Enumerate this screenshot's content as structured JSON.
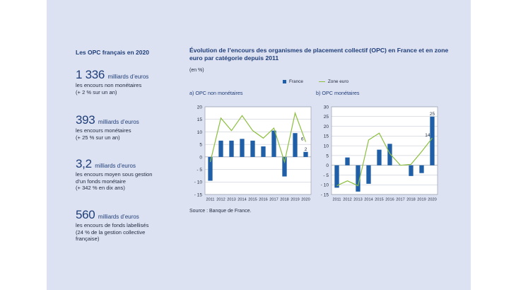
{
  "sidebar": {
    "heading": "Les OPC français en 2020",
    "stats": [
      {
        "value": "1 336",
        "unit": "milliards d’euros",
        "desc": "les encours non monétaires\n(+ 2 % sur un an)"
      },
      {
        "value": "393",
        "unit": "milliards d’euros",
        "desc": "les encours monétaires\n(+ 25 % sur un an)"
      },
      {
        "value": "3,2",
        "unit": "milliards d’euros",
        "desc": "les encours moyen sous gestion\nd’un fonds monétaire\n(+ 342 % en dix ans)"
      },
      {
        "value": "560",
        "unit": "milliards d’euros",
        "desc": "les encours de fonds labellisés\n(24 % de la gestion collective\nfrançaise)"
      }
    ]
  },
  "figure": {
    "title": "Évolution de l’encours des organismes de placement collectif (OPC) en France et en zone euro par catégorie depuis 2011",
    "unit": "(en %)",
    "legend_france": "France",
    "legend_zone": "Zone euro",
    "source": "Source : Banque de France.",
    "colors": {
      "bar": "#1f5fa8",
      "line": "#8cbf3f"
    }
  },
  "chart_data": [
    {
      "type": "bar",
      "subtitle": "a)  OPC non monétaires",
      "categories": [
        "2011",
        "2012",
        "2013",
        "2014",
        "2015",
        "2016",
        "2017",
        "2018",
        "2019",
        "2020"
      ],
      "ylim": [
        -15,
        20
      ],
      "yticks": [
        -15,
        -10,
        -5,
        0,
        5,
        10,
        15,
        20
      ],
      "series": [
        {
          "name": "France",
          "type": "bar",
          "values": [
            -9.5,
            6.5,
            6.5,
            7.2,
            6.5,
            4.2,
            10.5,
            -7.8,
            9.5,
            2
          ]
        },
        {
          "name": "Zone euro",
          "type": "line",
          "values": [
            -2,
            15.5,
            10.5,
            16.5,
            10.5,
            7.5,
            11.5,
            -2,
            17.5,
            6
          ]
        }
      ],
      "labels": [
        {
          "series": 0,
          "index": 9,
          "text": "2"
        },
        {
          "series": 1,
          "index": 9,
          "text": "6"
        }
      ]
    },
    {
      "type": "bar",
      "subtitle": "b)  OPC monétaires",
      "categories": [
        "2011",
        "2012",
        "2013",
        "2014",
        "2015",
        "2016",
        "2017",
        "2018",
        "2019",
        "2020"
      ],
      "ylim": [
        -15,
        30
      ],
      "yticks": [
        -15,
        -10,
        -5,
        0,
        5,
        10,
        15,
        20,
        25,
        30
      ],
      "series": [
        {
          "name": "France",
          "type": "bar",
          "values": [
            -11.5,
            4,
            -13.5,
            -9.5,
            8,
            11,
            0,
            -5.5,
            -4,
            25
          ]
        },
        {
          "name": "Zone euro",
          "type": "line",
          "values": [
            -10.5,
            -8,
            -10.5,
            13,
            16.5,
            6,
            0,
            0.5,
            7,
            14
          ]
        }
      ],
      "labels": [
        {
          "series": 0,
          "index": 9,
          "text": "25"
        },
        {
          "series": 1,
          "index": 9,
          "text": "14"
        }
      ]
    }
  ]
}
